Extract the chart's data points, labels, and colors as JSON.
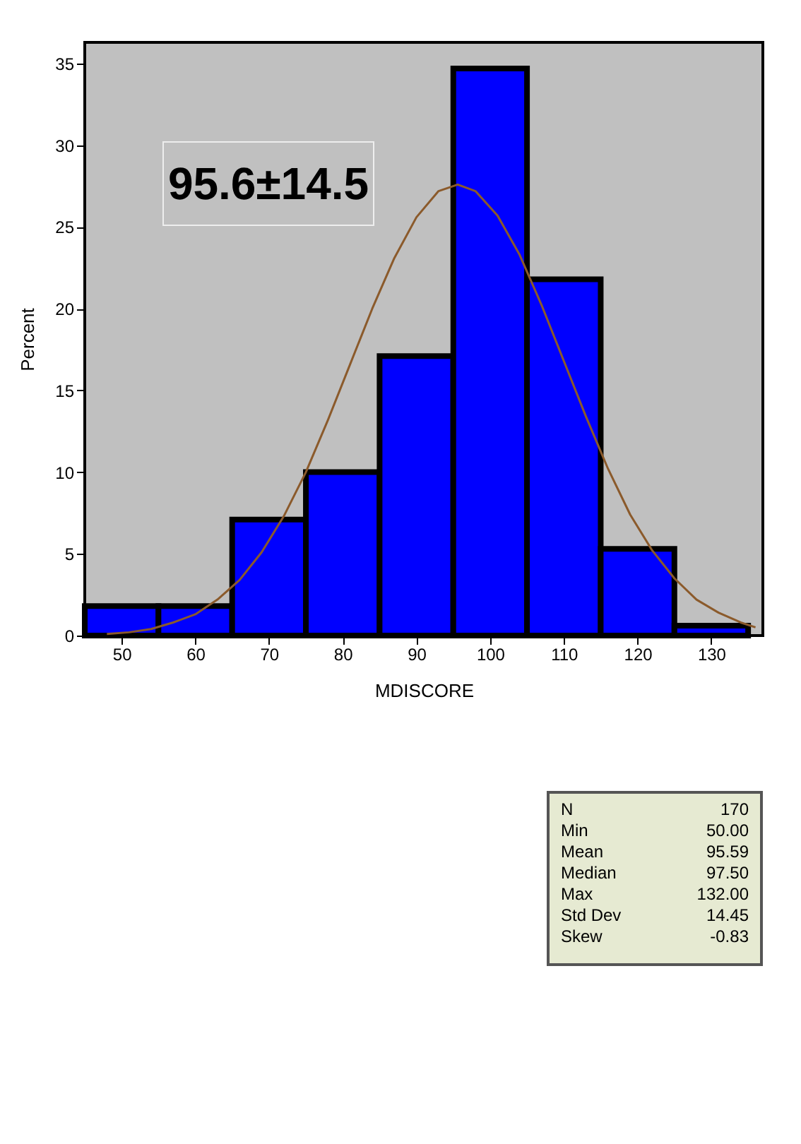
{
  "chart_data": {
    "type": "histogram",
    "xlabel": "MDISCORE",
    "ylabel": "Percent",
    "xlim": [
      45,
      137
    ],
    "xticks": [
      50,
      60,
      70,
      80,
      90,
      100,
      110,
      120,
      130
    ],
    "ylim": [
      0,
      36.3
    ],
    "yticks": [
      0,
      5,
      10,
      15,
      20,
      25,
      30,
      35
    ],
    "grid": false,
    "series": [
      {
        "color": "#0000ff",
        "bins": [
          45,
          55,
          65,
          75,
          85,
          95,
          105,
          115,
          125,
          135
        ],
        "values": [
          1.8,
          1.8,
          7.1,
          10.0,
          17.1,
          34.7,
          21.8,
          5.3,
          0.6
        ]
      },
      {
        "type": "line",
        "color": "#8b5a2b",
        "x": [
          48,
          51,
          54,
          57,
          60,
          63,
          66,
          69,
          72,
          75,
          78,
          81,
          84,
          87,
          90,
          93,
          95.6,
          98,
          101,
          104,
          107,
          110,
          113,
          116,
          119,
          122,
          125,
          128,
          131,
          134,
          136
        ],
        "values": [
          0.1,
          0.2,
          0.4,
          0.8,
          1.3,
          2.2,
          3.4,
          5.1,
          7.3,
          10.0,
          13.2,
          16.6,
          20.0,
          23.1,
          25.6,
          27.2,
          27.6,
          27.2,
          25.7,
          23.3,
          20.2,
          16.8,
          13.4,
          10.2,
          7.4,
          5.2,
          3.5,
          2.2,
          1.4,
          0.8,
          0.5
        ]
      }
    ],
    "annotations": [
      "95.6±14.5",
      "N",
      "170",
      "Min",
      "50.00",
      "Mean",
      "95.59",
      "Median",
      "97.50",
      "Max",
      "132.00",
      "Std Dev",
      "14.45",
      "Skew",
      "-0.83"
    ]
  }
}
